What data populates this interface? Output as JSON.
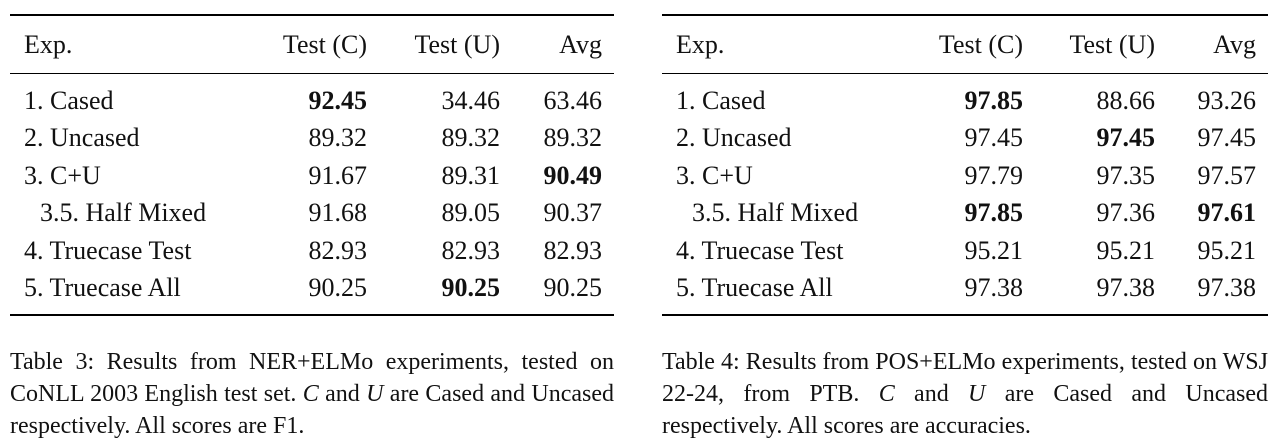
{
  "tables": [
    {
      "columns": [
        "Exp.",
        "Test (C)",
        "Test (U)",
        "Avg"
      ],
      "rows": [
        {
          "exp": "1. Cased",
          "c": "92.45",
          "u": "34.46",
          "avg": "63.46",
          "bold": [
            "c"
          ]
        },
        {
          "exp": "2. Uncased",
          "c": "89.32",
          "u": "89.32",
          "avg": "89.32",
          "bold": []
        },
        {
          "exp": "3. C+U",
          "c": "91.67",
          "u": "89.31",
          "avg": "90.49",
          "bold": [
            "avg"
          ]
        },
        {
          "exp": "3.5. Half Mixed",
          "c": "91.68",
          "u": "89.05",
          "avg": "90.37",
          "bold": [],
          "indent": true
        },
        {
          "exp": "4. Truecase Test",
          "c": "82.93",
          "u": "82.93",
          "avg": "82.93",
          "bold": []
        },
        {
          "exp": "5. Truecase All",
          "c": "90.25",
          "u": "90.25",
          "avg": "90.25",
          "bold": [
            "u"
          ]
        }
      ],
      "caption": {
        "pre": "Table 3: Results from NER+ELMo experiments, tested on CoNLL 2003 English test set. ",
        "var1": "C",
        "mid": " and ",
        "var2": "U",
        "post": " are Cased and Uncased respectively. All scores are F1."
      }
    },
    {
      "columns": [
        "Exp.",
        "Test (C)",
        "Test (U)",
        "Avg"
      ],
      "rows": [
        {
          "exp": "1. Cased",
          "c": "97.85",
          "u": "88.66",
          "avg": "93.26",
          "bold": [
            "c"
          ]
        },
        {
          "exp": "2. Uncased",
          "c": "97.45",
          "u": "97.45",
          "avg": "97.45",
          "bold": [
            "u"
          ]
        },
        {
          "exp": "3. C+U",
          "c": "97.79",
          "u": "97.35",
          "avg": "97.57",
          "bold": []
        },
        {
          "exp": "3.5. Half Mixed",
          "c": "97.85",
          "u": "97.36",
          "avg": "97.61",
          "bold": [
            "c",
            "avg"
          ],
          "indent": true
        },
        {
          "exp": "4. Truecase Test",
          "c": "95.21",
          "u": "95.21",
          "avg": "95.21",
          "bold": []
        },
        {
          "exp": "5. Truecase All",
          "c": "97.38",
          "u": "97.38",
          "avg": "97.38",
          "bold": []
        }
      ],
      "caption": {
        "pre": "Table 4: Results from POS+ELMo experiments, tested on WSJ 22-24, from PTB. ",
        "var1": "C",
        "mid": " and ",
        "var2": "U",
        "post": " are Cased and Uncased respectively. All scores are accuracies."
      }
    }
  ]
}
